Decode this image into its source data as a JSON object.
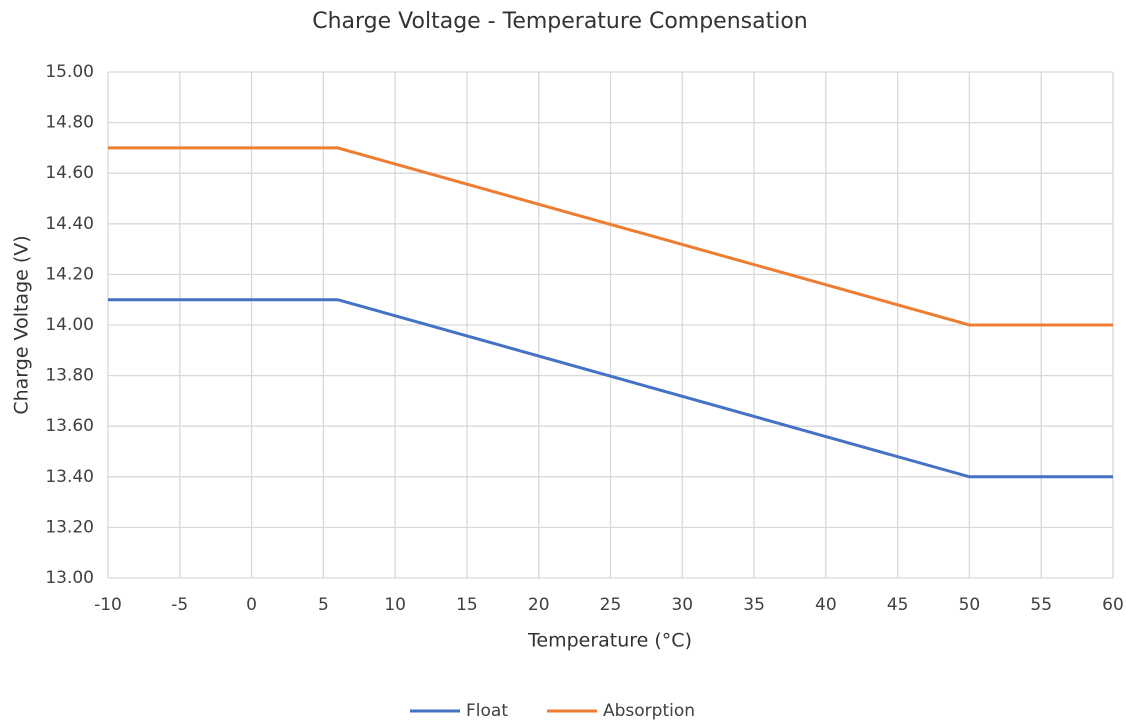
{
  "chart_data": {
    "type": "line",
    "title": "Charge Voltage - Temperature Compensation",
    "x_label": "Temperature (°C)",
    "y_label": "Charge Voltage (V)",
    "x": [
      -10,
      6,
      50,
      60
    ],
    "series": [
      {
        "name": "Float",
        "color": "#4472c4",
        "values": [
          14.1,
          14.1,
          13.4,
          13.4
        ]
      },
      {
        "name": "Absorption",
        "color": "#ed7d31",
        "values": [
          14.7,
          14.7,
          14.0,
          14.0
        ]
      }
    ],
    "xlim": [
      -10,
      60
    ],
    "xticks": [
      -10,
      -5,
      0,
      5,
      10,
      15,
      20,
      25,
      30,
      35,
      40,
      45,
      50,
      55,
      60
    ],
    "ylim": [
      13.0,
      15.0
    ],
    "yticks": [
      {
        "value": 13.0,
        "label": "13.00"
      },
      {
        "value": 13.2,
        "label": "13.20"
      },
      {
        "value": 13.4,
        "label": "13.40"
      },
      {
        "value": 13.6,
        "label": "13.60"
      },
      {
        "value": 13.8,
        "label": "13.80"
      },
      {
        "value": 14.0,
        "label": "14.00"
      },
      {
        "value": 14.2,
        "label": "14.20"
      },
      {
        "value": 14.4,
        "label": "14.40"
      },
      {
        "value": 14.6,
        "label": "14.60"
      },
      {
        "value": 14.8,
        "label": "14.80"
      },
      {
        "value": 15.0,
        "label": "15.00"
      }
    ],
    "grid": true,
    "legend": "bottom"
  }
}
